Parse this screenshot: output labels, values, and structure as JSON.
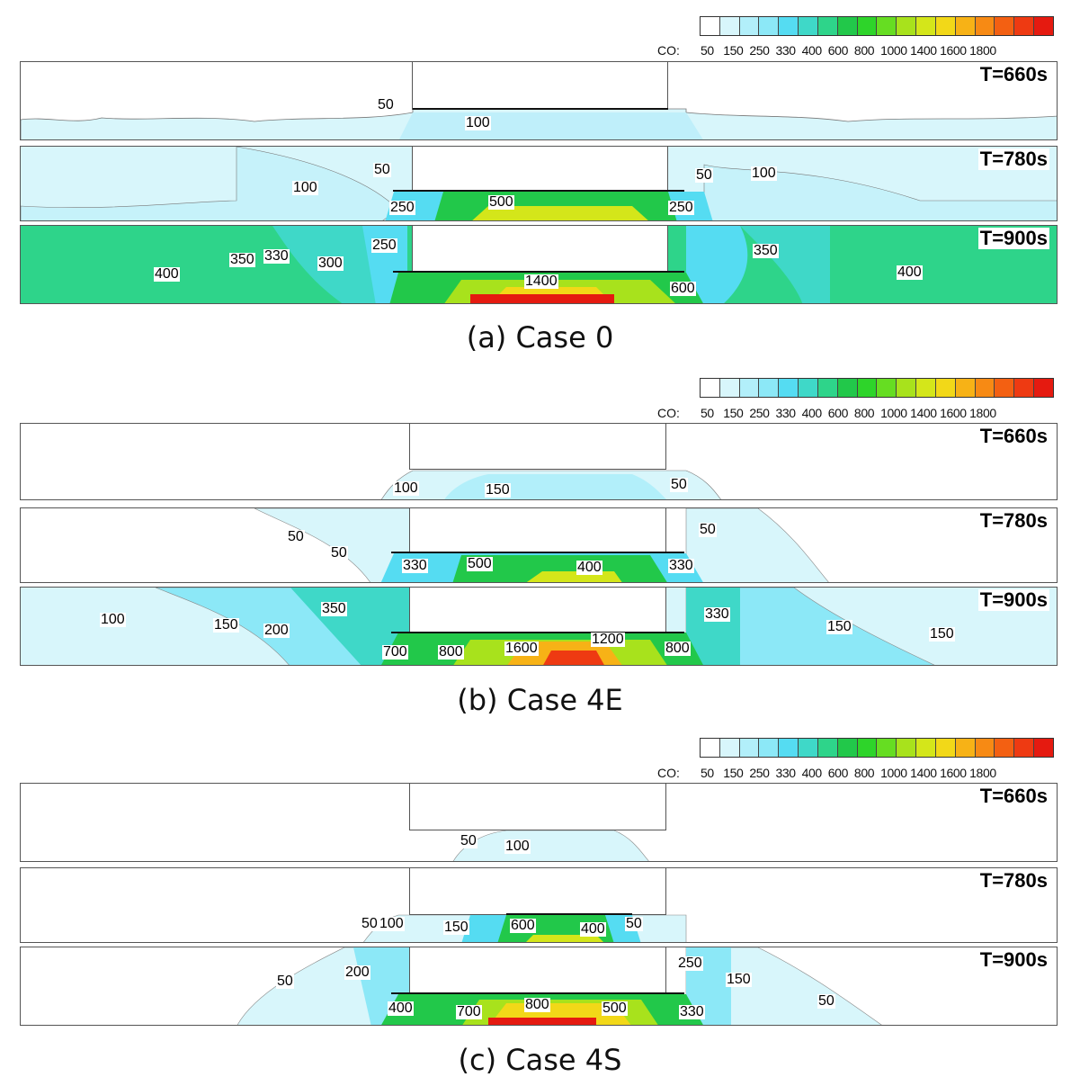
{
  "colorbar": {
    "title": "CO:",
    "ticks": "50   150  250  330  400  600  800  1000 1400 1600 1800",
    "colors": [
      "#ffffff",
      "#d8f6fb",
      "#b2effa",
      "#8ce8f7",
      "#55dcf2",
      "#3fd8c8",
      "#2ed48a",
      "#22c84a",
      "#2ed42a",
      "#66dd22",
      "#a8e21c",
      "#d4e61a",
      "#f2d818",
      "#f7b216",
      "#f78a14",
      "#f36012",
      "#ee3a12",
      "#e51a10"
    ]
  },
  "panels": [
    {
      "caption": "(a) Case 0",
      "snapshots": [
        {
          "time": "T=660s",
          "labels": [
            {
              "text": "50"
            },
            {
              "text": "100"
            }
          ]
        },
        {
          "time": "T=780s",
          "labels": [
            {
              "text": "50"
            },
            {
              "text": "100"
            },
            {
              "text": "250"
            },
            {
              "text": "500"
            },
            {
              "text": "250"
            },
            {
              "text": "50"
            },
            {
              "text": "100"
            }
          ]
        },
        {
          "time": "T=900s",
          "labels": [
            {
              "text": "400"
            },
            {
              "text": "350"
            },
            {
              "text": "330"
            },
            {
              "text": "300"
            },
            {
              "text": "250"
            },
            {
              "text": "1400"
            },
            {
              "text": "600"
            },
            {
              "text": "350"
            },
            {
              "text": "400"
            }
          ]
        }
      ]
    },
    {
      "caption": "(b) Case 4E",
      "snapshots": [
        {
          "time": "T=660s",
          "labels": [
            {
              "text": "100"
            },
            {
              "text": "150"
            },
            {
              "text": "50"
            }
          ]
        },
        {
          "time": "T=780s",
          "labels": [
            {
              "text": "50"
            },
            {
              "text": "50"
            },
            {
              "text": "330"
            },
            {
              "text": "500"
            },
            {
              "text": "400"
            },
            {
              "text": "330"
            },
            {
              "text": "50"
            }
          ]
        },
        {
          "time": "T=900s",
          "labels": [
            {
              "text": "100"
            },
            {
              "text": "150"
            },
            {
              "text": "350"
            },
            {
              "text": "200"
            },
            {
              "text": "700"
            },
            {
              "text": "800"
            },
            {
              "text": "1600"
            },
            {
              "text": "1200"
            },
            {
              "text": "800"
            },
            {
              "text": "330"
            },
            {
              "text": "150"
            },
            {
              "text": "150"
            }
          ]
        }
      ]
    },
    {
      "caption": "(c) Case 4S",
      "snapshots": [
        {
          "time": "T=660s",
          "labels": [
            {
              "text": "50"
            },
            {
              "text": "100"
            }
          ]
        },
        {
          "time": "T=780s",
          "labels": [
            {
              "text": "50"
            },
            {
              "text": "100"
            },
            {
              "text": "150"
            },
            {
              "text": "600"
            },
            {
              "text": "400"
            },
            {
              "text": "50"
            }
          ]
        },
        {
          "time": "T=900s",
          "labels": [
            {
              "text": "50"
            },
            {
              "text": "200"
            },
            {
              "text": "400"
            },
            {
              "text": "700"
            },
            {
              "text": "800"
            },
            {
              "text": "500"
            },
            {
              "text": "250"
            },
            {
              "text": "150"
            },
            {
              "text": "330"
            },
            {
              "text": "50"
            }
          ]
        }
      ]
    }
  ]
}
